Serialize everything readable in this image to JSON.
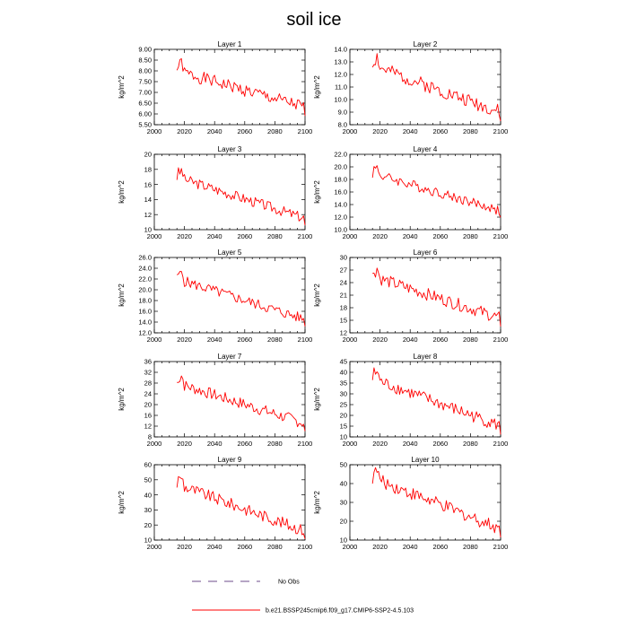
{
  "title": "soil ice",
  "x_ticks": [
    2000,
    2020,
    2040,
    2060,
    2080,
    2100
  ],
  "xlim": [
    2000,
    2100
  ],
  "legend": {
    "obs_label": "No Obs",
    "model_label": "b.e21.BSSP245cmip6.f09_g17.CMIP6-SSP2-4.5.103",
    "obs_color": "#6e4b8b",
    "model_color": "#ff0000"
  },
  "chart_data": [
    {
      "type": "line",
      "title": "Layer 1",
      "ylabel": "kg/m^2",
      "ylim": [
        5.5,
        9.0
      ],
      "y_ticks": [
        "5.50",
        "6.00",
        "6.50",
        "7.00",
        "7.50",
        "8.00",
        "8.50",
        "9.00"
      ],
      "y_tick_values": [
        5.5,
        6.0,
        6.5,
        7.0,
        7.5,
        8.0,
        8.5,
        9.0
      ],
      "start": 8.0,
      "end": 6.3,
      "noise": 0.3,
      "seed": 1
    },
    {
      "type": "line",
      "title": "Layer 2",
      "ylabel": "kg/m^2",
      "ylim": [
        8.0,
        14.0
      ],
      "y_ticks": [
        "8.0",
        "9.0",
        "10.0",
        "11.0",
        "12.0",
        "13.0",
        "14.0"
      ],
      "y_tick_values": [
        8,
        9,
        10,
        11,
        12,
        13,
        14
      ],
      "start": 12.7,
      "end": 9.0,
      "noise": 0.55,
      "seed": 2
    },
    {
      "type": "line",
      "title": "Layer 3",
      "ylabel": "kg/m^2",
      "ylim": [
        10,
        20
      ],
      "y_ticks": [
        "10",
        "12",
        "14",
        "16",
        "18",
        "20"
      ],
      "y_tick_values": [
        10,
        12,
        14,
        16,
        18,
        20
      ],
      "start": 17.0,
      "end": 11.5,
      "noise": 0.7,
      "seed": 3
    },
    {
      "type": "line",
      "title": "Layer 4",
      "ylabel": "kg/m^2",
      "ylim": [
        10.0,
        22.0
      ],
      "y_ticks": [
        "10.0",
        "12.0",
        "14.0",
        "16.0",
        "18.0",
        "20.0",
        "22.0"
      ],
      "y_tick_values": [
        10,
        12,
        14,
        16,
        18,
        20,
        22
      ],
      "start": 19.0,
      "end": 13.0,
      "noise": 0.8,
      "seed": 4
    },
    {
      "type": "line",
      "title": "Layer 5",
      "ylabel": "kg/m^2",
      "ylim": [
        12.0,
        26.0
      ],
      "y_ticks": [
        "12.0",
        "14.0",
        "16.0",
        "18.0",
        "20.0",
        "22.0",
        "24.0",
        "26.0"
      ],
      "y_tick_values": [
        12,
        14,
        16,
        18,
        20,
        22,
        24,
        26
      ],
      "start": 22.0,
      "end": 14.5,
      "noise": 1.0,
      "seed": 5
    },
    {
      "type": "line",
      "title": "Layer 6",
      "ylabel": "kg/m^2",
      "ylim": [
        12,
        30
      ],
      "y_ticks": [
        "12",
        "15",
        "18",
        "21",
        "24",
        "27",
        "30"
      ],
      "y_tick_values": [
        12,
        15,
        18,
        21,
        24,
        27,
        30
      ],
      "start": 25.5,
      "end": 15.5,
      "noise": 1.5,
      "seed": 6
    },
    {
      "type": "line",
      "title": "Layer 7",
      "ylabel": "kg/m^2",
      "ylim": [
        8,
        36
      ],
      "y_ticks": [
        "8",
        "12",
        "16",
        "20",
        "24",
        "28",
        "32",
        "36"
      ],
      "y_tick_values": [
        8,
        12,
        16,
        20,
        24,
        28,
        32,
        36
      ],
      "start": 28.0,
      "end": 13.0,
      "noise": 2.2,
      "seed": 7
    },
    {
      "type": "line",
      "title": "Layer 8",
      "ylabel": "kg/m^2",
      "ylim": [
        10,
        45
      ],
      "y_ticks": [
        "10",
        "15",
        "20",
        "25",
        "30",
        "35",
        "40",
        "45"
      ],
      "y_tick_values": [
        10,
        15,
        20,
        25,
        30,
        35,
        40,
        45
      ],
      "start": 37.0,
      "end": 15.0,
      "noise": 3.0,
      "seed": 8
    },
    {
      "type": "line",
      "title": "Layer 9",
      "ylabel": "kg/m^2",
      "ylim": [
        10,
        60
      ],
      "y_ticks": [
        "10",
        "20",
        "30",
        "40",
        "50",
        "60"
      ],
      "y_tick_values": [
        10,
        20,
        30,
        40,
        50,
        60
      ],
      "start": 47.0,
      "end": 16.0,
      "noise": 4.0,
      "seed": 9
    },
    {
      "type": "line",
      "title": "Layer 10",
      "ylabel": "kg/m^2",
      "ylim": [
        10,
        50
      ],
      "y_ticks": [
        "10",
        "20",
        "30",
        "40",
        "50"
      ],
      "y_tick_values": [
        10,
        20,
        30,
        40,
        50
      ],
      "start": 43.0,
      "end": 16.0,
      "noise": 3.5,
      "seed": 10
    }
  ]
}
